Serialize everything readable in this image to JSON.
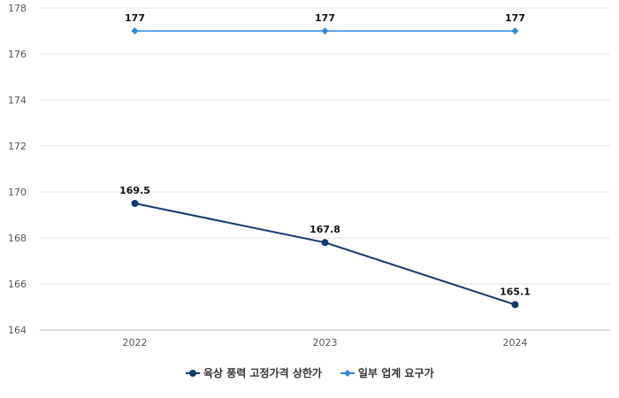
{
  "chart_data": {
    "type": "line",
    "categories": [
      "2022",
      "2023",
      "2024"
    ],
    "series": [
      {
        "name": "육상 풍력 고정가격 상한가",
        "values": [
          169.5,
          167.8,
          165.1
        ],
        "color": "#123a73",
        "marker": "circle",
        "labels": [
          "169.5",
          "167.8",
          "165.1"
        ]
      },
      {
        "name": "일부 업계 요구가",
        "values": [
          177,
          177,
          177
        ],
        "color": "#2f86e0",
        "marker": "diamond",
        "labels": [
          "177",
          "177",
          "177"
        ]
      }
    ],
    "ylim": [
      164,
      178
    ],
    "yticks": [
      "164",
      "166",
      "168",
      "170",
      "172",
      "174",
      "176",
      "178"
    ],
    "grid": true,
    "legend": "bottom",
    "title": "",
    "xlabel": "",
    "ylabel": ""
  }
}
